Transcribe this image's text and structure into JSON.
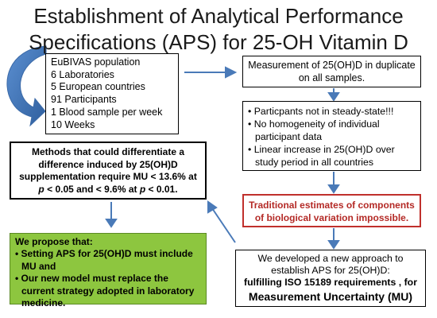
{
  "title": {
    "line1": "Establishment of Analytical Performance",
    "line2": "Specifications (APS) for 25-OH Vitamin D"
  },
  "population_box": {
    "lines": [
      "EuBIVAS population",
      "6 Laboratories",
      "5 European countries",
      "91 Participants",
      "1 Blood sample per week",
      "10 Weeks"
    ]
  },
  "measurement_box": {
    "text": "Measurement of 25(OH)D in duplicate on all samples."
  },
  "findings_box": {
    "bullets": [
      "• Particpants not in steady-state!!!",
      "• No homogeneity of individual participant data",
      "• Linear increase in 25(OH)D over study period in all countries"
    ]
  },
  "methods_box": {
    "line1": "Methods that could differentiate a",
    "line2": "difference induced by 25(OH)D",
    "line3": "supplementation require MU < 13.6%  at",
    "line4_a": "p",
    "line4_b": " < 0.05 and < 9.6% at ",
    "line4_c": "p",
    "line4_d": " < 0.01."
  },
  "traditional_box": {
    "text": "Traditional estimates of components of biological variation impossible."
  },
  "propose_box": {
    "heading": "We propose that:",
    "bullets": [
      "• Setting APS for 25(OH)D must include MU and",
      "• Our new model must replace the current strategy adopted in laboratory medicine."
    ]
  },
  "approach_box": {
    "line1": "We developed a new approach to",
    "line2": "establish APS for 25(OH)D:",
    "line3": "fulfilling ISO 15189 requirements , for",
    "line4": "Measurement Uncertainty (MU)"
  },
  "colors": {
    "arrow": "#4a7ab8",
    "propose_fill": "#8dc63f",
    "traditional_text": "#b42a26",
    "traditional_border": "#c0302c"
  }
}
